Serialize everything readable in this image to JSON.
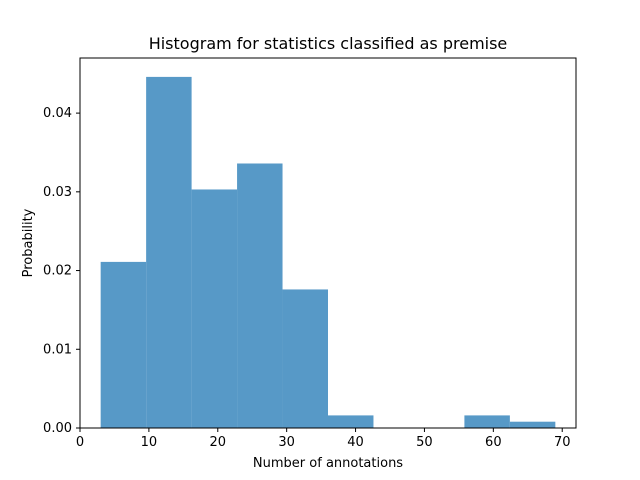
{
  "chart_data": {
    "type": "bar",
    "title": "Histogram for statistics classified as premise",
    "xlabel": "Number of annotations",
    "ylabel": "Probability",
    "bin_edges": [
      3.0,
      9.6,
      16.2,
      22.8,
      29.4,
      36.0,
      42.6,
      49.2,
      55.8,
      62.4,
      69.0
    ],
    "values": [
      0.0211,
      0.0446,
      0.0303,
      0.0336,
      0.0176,
      0.0016,
      0.0,
      0.0,
      0.0016,
      0.0008
    ],
    "xlim": [
      0,
      72
    ],
    "ylim": [
      0,
      0.047
    ],
    "x_ticks": [
      0,
      10,
      20,
      30,
      40,
      50,
      60,
      70
    ],
    "y_ticks": [
      0.0,
      0.01,
      0.02,
      0.03,
      0.04
    ],
    "x_tick_labels": [
      "0",
      "10",
      "20",
      "30",
      "40",
      "50",
      "60",
      "70"
    ],
    "y_tick_labels": [
      "0.00",
      "0.01",
      "0.02",
      "0.03",
      "0.04"
    ],
    "grid": false,
    "colors": {
      "bar": "#5799c7",
      "axis": "#000000"
    }
  }
}
